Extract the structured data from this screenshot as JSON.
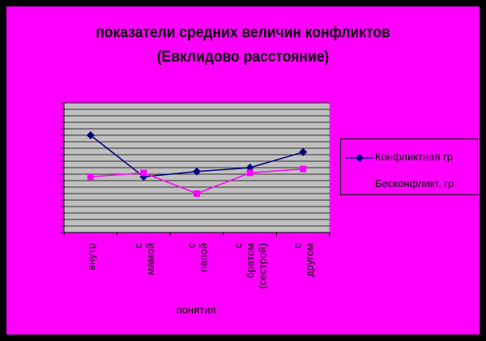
{
  "chart_data": {
    "type": "line",
    "title": "показатели средних величин конфликтов",
    "subtitle": "(Евклидово расстояние)",
    "xlabel": "понятия",
    "ylabel": "",
    "categories": [
      "внутр",
      "с мамой",
      "с папой",
      "с братом (сестрой)",
      "с другом"
    ],
    "ylim": [
      0,
      10
    ],
    "grid": true,
    "legend": "right",
    "series": [
      {
        "name": "Конфликтная гр",
        "color": "#000080",
        "marker": "diamond",
        "values": [
          7.5,
          4.3,
          4.7,
          5.0,
          6.2
        ]
      },
      {
        "name": "Бесконфликт. гр",
        "color": "#ff00ff",
        "marker": "square",
        "values": [
          4.3,
          4.6,
          3.0,
          4.6,
          4.9
        ]
      }
    ]
  },
  "colors": {
    "background": "#000000",
    "panel": "#ff00ff",
    "plot_area": "#c0c0c0"
  }
}
